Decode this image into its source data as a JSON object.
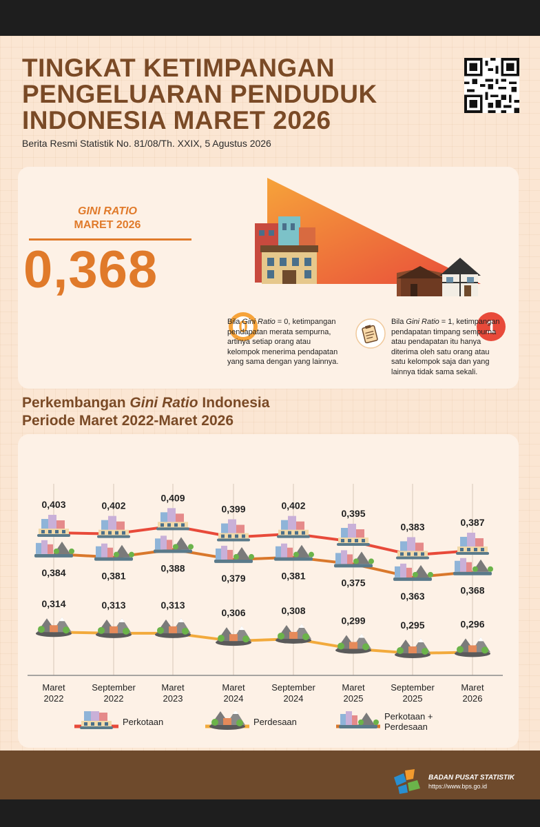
{
  "header": {
    "title_lines": [
      "TINGKAT KETIMPANGAN",
      "PENGELUARAN PENDUDUK",
      "INDONESIA MARET 2026"
    ],
    "subtitle": "Berita Resmi Statistik No. 81/08/Th. XXIX, 5 Agustus 2026"
  },
  "summary": {
    "label_line1": "GINI RATIO",
    "label_line2": "MARET 2026",
    "value": "0,368",
    "scale_min": "0",
    "scale_max": "1",
    "note_left": [
      "Bila Gini Ratio = 0, ketimpangan",
      "pendapatan merata sempurna,",
      "artinya setiap orang atau",
      "kelompok menerima pendapatan",
      "yang sama dengan yang lainnya."
    ],
    "note_right": [
      "Bila Gini Ratio = 1, ketimpangan",
      "pendapatan timpang sempurna",
      "atau pendapatan itu hanya",
      "diterima oleh satu orang atau",
      "satu kelompok saja dan yang",
      "lainnya tidak sama sekali."
    ]
  },
  "section": {
    "heading_line1_a": "Perkembangan ",
    "heading_line1_b": "Gini Ratio",
    "heading_line1_c": " Indonesia",
    "heading_line2": "Periode Maret 2022-Maret 2026"
  },
  "chart_data": {
    "type": "line",
    "x": [
      [
        "Maret",
        "2022"
      ],
      [
        "September",
        "2022"
      ],
      [
        "Maret",
        "2023"
      ],
      [
        "Maret",
        "2024"
      ],
      [
        "September",
        "2024"
      ],
      [
        "Maret",
        "2025"
      ],
      [
        "September",
        "2025"
      ],
      [
        "Maret",
        "2026"
      ]
    ],
    "series": [
      {
        "name": "Perkotaan",
        "values": [
          0.403,
          0.402,
          0.409,
          0.399,
          0.402,
          0.395,
          0.383,
          0.387
        ],
        "labels": [
          "0,403",
          "0,402",
          "0,409",
          "0,399",
          "0,402",
          "0,395",
          "0,383",
          "0,387"
        ],
        "color": "#e84a3a"
      },
      {
        "name": "Perkotaan + Perdesaan",
        "values": [
          0.384,
          0.381,
          0.388,
          0.379,
          0.381,
          0.375,
          0.363,
          0.368
        ],
        "labels": [
          "0,384",
          "0,381",
          "0,388",
          "0,379",
          "0,381",
          "0,375",
          "0,363",
          "0,368"
        ],
        "color": "#d9782c"
      },
      {
        "name": "Perdesaan",
        "values": [
          0.314,
          0.313,
          0.313,
          0.306,
          0.308,
          0.299,
          0.295,
          0.296
        ],
        "labels": [
          "0,314",
          "0,313",
          "0,313",
          "0,306",
          "0,308",
          "0,299",
          "0,295",
          "0,296"
        ],
        "color": "#f2aa3c"
      }
    ],
    "legend": [
      {
        "name": "Perkotaan",
        "icon": "city-icon"
      },
      {
        "name": "Perdesaan",
        "icon": "village-icon"
      },
      {
        "name_line1": "Perkotaan +",
        "name_line2": "Perdesaan",
        "icon": "city-village-icon"
      }
    ],
    "legend_position": "bottom"
  },
  "footer": {
    "org": "BADAN PUSAT STATISTIK",
    "url": "https://www.bps.go.id"
  },
  "colors": {
    "brown": "#7a4a26",
    "orange": "#e07a2a",
    "red": "#e84a3a",
    "footer": "#6e4a2c"
  }
}
